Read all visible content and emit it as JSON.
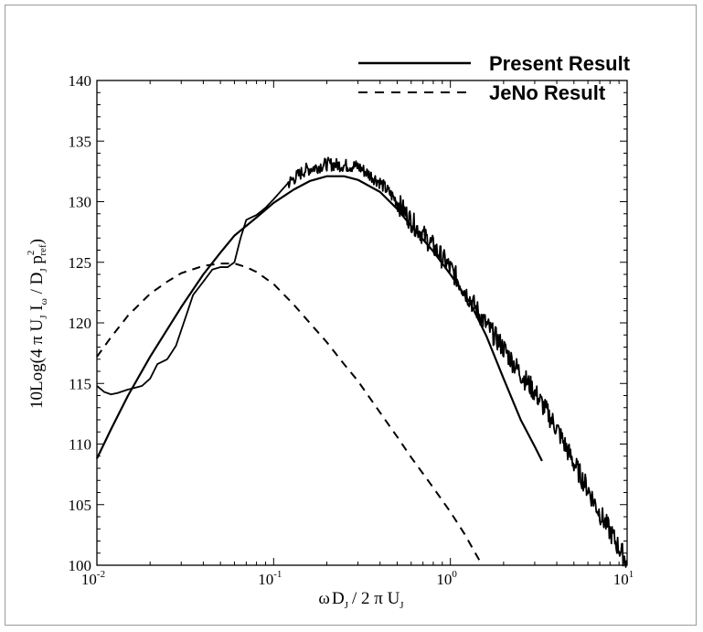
{
  "chart_data": {
    "type": "line",
    "x_scale": "log",
    "xlim": [
      0.01,
      10
    ],
    "ylim": [
      100,
      140
    ],
    "x_ticks": [
      {
        "base": "10",
        "exp": "-2",
        "value": 0.01
      },
      {
        "base": "10",
        "exp": "-1",
        "value": 0.1
      },
      {
        "base": "10",
        "exp": "0",
        "value": 1
      },
      {
        "base": "10",
        "exp": "1",
        "value": 10
      }
    ],
    "y_ticks": [
      "100",
      "105",
      "110",
      "115",
      "120",
      "125",
      "130",
      "135",
      "140"
    ],
    "y_tick_values": [
      100,
      105,
      110,
      115,
      120,
      125,
      130,
      135,
      140
    ],
    "xlabel": {
      "omega": "ω",
      "D": "D",
      "J1": "J",
      "mid": "/ 2 π U",
      "J2": "J"
    },
    "ylabel": {
      "pre": "10Log(4 π U",
      "J1": "J",
      "I": " I",
      "omega": "ω",
      "mid": " / D",
      "J2": "J",
      "p": " p",
      "ref": "ref",
      "sq": "2",
      "close": ")"
    },
    "grid": false,
    "legend_position": "top-right",
    "series": [
      {
        "name": "Present Result",
        "style": "solid",
        "x": [
          0.01,
          0.012,
          0.015,
          0.02,
          0.03,
          0.04,
          0.05,
          0.06,
          0.08,
          0.1,
          0.13,
          0.16,
          0.2,
          0.25,
          0.3,
          0.4,
          0.5,
          0.6,
          0.8,
          1.0,
          1.3,
          1.6,
          2.0,
          2.5,
          3.0,
          3.3
        ],
        "y": [
          108.8,
          111.2,
          114.0,
          117.2,
          121.3,
          124.0,
          125.8,
          127.2,
          128.7,
          129.9,
          131.0,
          131.7,
          132.1,
          132.1,
          131.8,
          130.8,
          129.4,
          128.0,
          125.9,
          124.0,
          121.6,
          118.9,
          115.4,
          112.0,
          109.8,
          108.6
        ]
      },
      {
        "name": "JeNo Result",
        "style": "dashed",
        "x": [
          0.01,
          0.012,
          0.015,
          0.02,
          0.025,
          0.03,
          0.04,
          0.05,
          0.06,
          0.07,
          0.08,
          0.1,
          0.13,
          0.16,
          0.2,
          0.25,
          0.3,
          0.4,
          0.5,
          0.6,
          0.8,
          1.0,
          1.2,
          1.5
        ],
        "y": [
          117.2,
          118.8,
          120.6,
          122.4,
          123.4,
          124.1,
          124.7,
          124.9,
          124.9,
          124.6,
          124.2,
          123.2,
          121.5,
          120.0,
          118.4,
          116.6,
          115.2,
          112.6,
          110.6,
          108.9,
          106.4,
          104.4,
          102.6,
          100.1
        ]
      },
      {
        "name": "",
        "style": "noisy-solid",
        "x": [
          0.01,
          0.011,
          0.012,
          0.013,
          0.015,
          0.017,
          0.018,
          0.02,
          0.022,
          0.025,
          0.028,
          0.032,
          0.035,
          0.04,
          0.045,
          0.05,
          0.055,
          0.06,
          0.065,
          0.07,
          0.08,
          0.09,
          0.1,
          0.12,
          0.15,
          0.2,
          0.25,
          0.3,
          0.4,
          0.5,
          0.6,
          0.8,
          1.0,
          1.3,
          1.6,
          2.0,
          2.5,
          3.0,
          4.0,
          5.0,
          6.0,
          7.0,
          8.0,
          9.0,
          10.0
        ],
        "y": [
          114.8,
          114.3,
          114.1,
          114.2,
          114.5,
          114.7,
          114.8,
          115.4,
          116.6,
          117.0,
          118.1,
          120.6,
          122.3,
          123.4,
          124.4,
          124.6,
          124.6,
          125.0,
          127.0,
          128.5,
          128.9,
          129.5,
          130.2,
          131.5,
          132.6,
          133.1,
          133.0,
          132.9,
          131.6,
          130.0,
          128.4,
          126.3,
          124.5,
          121.9,
          119.8,
          117.9,
          115.8,
          114.3,
          111.3,
          108.4,
          106.3,
          104.3,
          102.8,
          101.4,
          100.3
        ]
      }
    ]
  }
}
